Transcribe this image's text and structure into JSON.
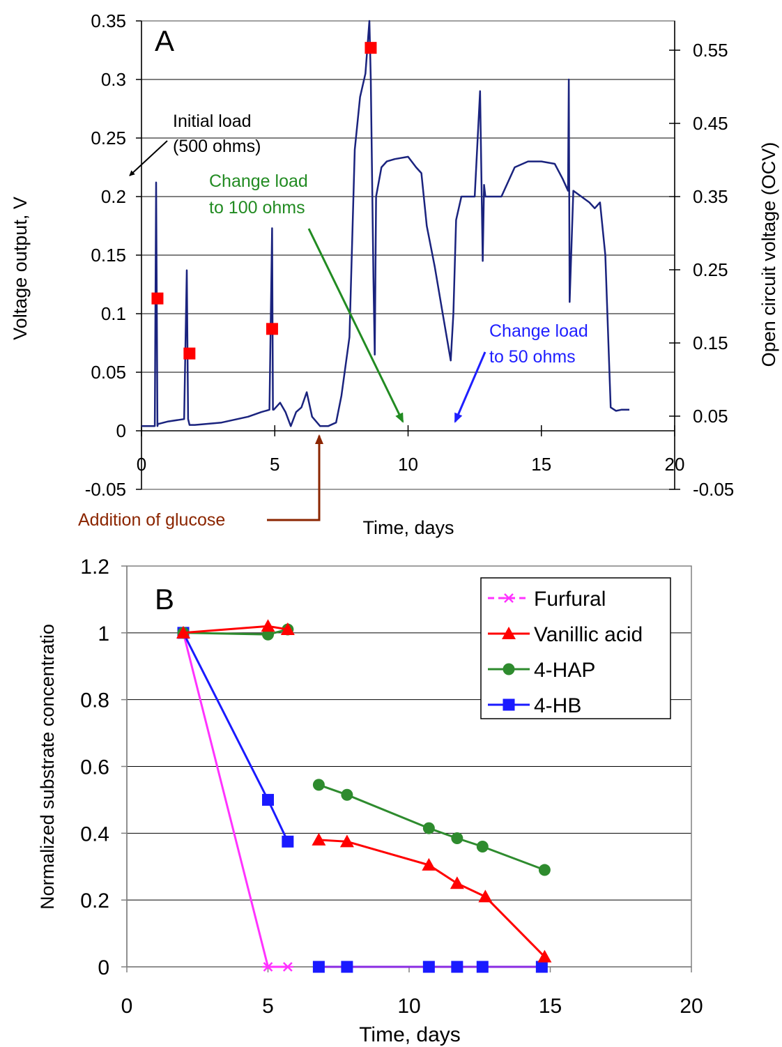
{
  "colors": {
    "voltage_line": "#1a237e",
    "ocv_marker": "#ff0000",
    "furfural": "#ff33ff",
    "vanillic_acid": "#ff0000",
    "hap": "#2e8b2e",
    "hb": "#1a1aff",
    "zero_overlap": "#8a2be2",
    "anno_black": "#000000",
    "anno_green": "#228b22",
    "anno_blue": "#1f1fff",
    "anno_brown": "#8b2500"
  },
  "chart_data": [
    {
      "type": "line",
      "panel_label": "A",
      "title": "",
      "xlabel": "Time, days",
      "ylabel": "Voltage output, V",
      "y2label": "Open circuit voltage (OCV)",
      "xlim": [
        0,
        20
      ],
      "ylim": [
        -0.05,
        0.35
      ],
      "y2lim": [
        -0.05,
        0.59
      ],
      "x_ticks": [
        0,
        5,
        10,
        15,
        20
      ],
      "y_ticks": [
        -0.05,
        0,
        0.05,
        0.1,
        0.15,
        0.2,
        0.25,
        0.3,
        0.35
      ],
      "y_tick_labels": [
        "-0.05",
        "0",
        "0.05",
        "0.1",
        "0.15",
        "0.2",
        "0.25",
        "0.3",
        "0.35"
      ],
      "y2_ticks": [
        -0.05,
        0.05,
        0.15,
        0.25,
        0.35,
        0.45,
        0.55
      ],
      "y2_tick_labels": [
        "-0.05",
        "0.05",
        "0.15",
        "0.25",
        "0.35",
        "0.45",
        "0.55"
      ],
      "grid": "horizontal",
      "voltage_series": {
        "x": [
          0,
          0.5,
          0.55,
          0.6,
          0.62,
          0.66,
          1.0,
          1.6,
          1.7,
          1.75,
          1.8,
          1.85,
          2.0,
          3.0,
          4.0,
          4.5,
          4.8,
          4.9,
          4.93,
          4.96,
          5.2,
          5.4,
          5.6,
          5.8,
          6.0,
          6.2,
          6.4,
          6.7,
          7.0,
          7.3,
          7.5,
          7.8,
          8.0,
          8.2,
          8.4,
          8.55,
          8.6,
          8.7,
          8.75,
          8.8,
          9.0,
          9.2,
          9.5,
          10.0,
          10.3,
          10.5,
          10.7,
          11.0,
          11.3,
          11.6,
          11.7,
          11.8,
          12.0,
          12.5,
          12.7,
          12.8,
          12.85,
          12.9,
          13.0,
          13.5,
          14.0,
          14.5,
          15.0,
          15.5,
          15.8,
          16.0,
          16.03,
          16.06,
          16.2,
          16.5,
          16.8,
          17.0,
          17.2,
          17.4,
          17.6,
          17.8,
          18.0,
          18.3
        ],
        "y": [
          0.004,
          0.004,
          0.212,
          0.004,
          0.006,
          0.006,
          0.008,
          0.01,
          0.137,
          0.01,
          0.005,
          0.005,
          0.005,
          0.007,
          0.012,
          0.016,
          0.018,
          0.173,
          0.018,
          0.018,
          0.024,
          0.016,
          0.004,
          0.016,
          0.02,
          0.033,
          0.012,
          0.004,
          0.004,
          0.007,
          0.03,
          0.08,
          0.24,
          0.285,
          0.305,
          0.35,
          0.3,
          0.13,
          0.065,
          0.2,
          0.225,
          0.23,
          0.232,
          0.234,
          0.225,
          0.22,
          0.175,
          0.14,
          0.1,
          0.06,
          0.1,
          0.18,
          0.2,
          0.2,
          0.29,
          0.145,
          0.21,
          0.2,
          0.2,
          0.2,
          0.225,
          0.23,
          0.23,
          0.228,
          0.215,
          0.205,
          0.3,
          0.11,
          0.205,
          0.2,
          0.195,
          0.19,
          0.195,
          0.15,
          0.02,
          0.017,
          0.018,
          0.018
        ]
      },
      "ocv_points": {
        "x": [
          0.6,
          1.8,
          4.9,
          8.6
        ],
        "y": [
          0.113,
          0.066,
          0.087,
          0.327
        ]
      },
      "annotations": [
        {
          "id": "initial",
          "lines": [
            "Initial load",
            "(500 ohms)"
          ],
          "color": "anno_black"
        },
        {
          "id": "load100",
          "lines": [
            "Change load",
            "to 100 ohms"
          ],
          "color": "anno_green"
        },
        {
          "id": "load50",
          "lines": [
            "Change load",
            "to 50 ohms"
          ],
          "color": "anno_blue"
        },
        {
          "id": "glucose",
          "lines": [
            "Addition of glucose"
          ],
          "color": "anno_brown"
        }
      ]
    },
    {
      "type": "line",
      "panel_label": "B",
      "title": "",
      "xlabel": "Time, days",
      "ylabel": "Normalized substrate concentratio",
      "xlim": [
        0,
        20
      ],
      "ylim": [
        0,
        1.2
      ],
      "x_ticks": [
        0,
        5,
        10,
        15,
        20
      ],
      "y_ticks": [
        0,
        0.2,
        0.4,
        0.6,
        0.8,
        1,
        1.2
      ],
      "y_tick_labels": [
        "0",
        "0.2",
        "0.4",
        "0.6",
        "0.8",
        "1",
        "1.2"
      ],
      "grid": "horizontal",
      "legend_position": "top-right",
      "series": [
        {
          "name": "Furfural",
          "color": "furfural",
          "marker": "star",
          "dashed": true,
          "segments": [
            {
              "x": [
                2,
                5,
                5.7
              ],
              "y": [
                1,
                0,
                0
              ]
            },
            {
              "x": [
                6.8,
                7.8,
                10.7,
                11.7,
                12.6,
                14.7
              ],
              "y": [
                0,
                0,
                0,
                0,
                0,
                0
              ]
            }
          ]
        },
        {
          "name": "Vanillic acid",
          "color": "vanillic_acid",
          "marker": "triangle",
          "dashed": false,
          "segments": [
            {
              "x": [
                2,
                5,
                5.7
              ],
              "y": [
                1,
                1.02,
                1.01
              ]
            },
            {
              "x": [
                6.8,
                7.8,
                10.7,
                11.7,
                12.7,
                14.8
              ],
              "y": [
                0.38,
                0.375,
                0.305,
                0.25,
                0.21,
                0.03
              ]
            }
          ]
        },
        {
          "name": "4-HAP",
          "color": "hap",
          "marker": "circle",
          "dashed": false,
          "segments": [
            {
              "x": [
                2,
                5,
                5.7
              ],
              "y": [
                1,
                0.995,
                1.01
              ]
            },
            {
              "x": [
                6.8,
                7.8,
                10.7,
                11.7,
                12.6,
                14.8
              ],
              "y": [
                0.545,
                0.515,
                0.415,
                0.385,
                0.36,
                0.29
              ]
            }
          ]
        },
        {
          "name": "4-HB",
          "color": "hb",
          "marker": "square",
          "dashed": false,
          "segments": [
            {
              "x": [
                2,
                5,
                5.7
              ],
              "y": [
                1,
                0.5,
                0.375
              ]
            },
            {
              "x": [
                6.8,
                7.8,
                10.7,
                11.7,
                12.6,
                14.7
              ],
              "y": [
                0,
                0,
                0,
                0,
                0,
                0
              ]
            }
          ]
        }
      ]
    }
  ]
}
